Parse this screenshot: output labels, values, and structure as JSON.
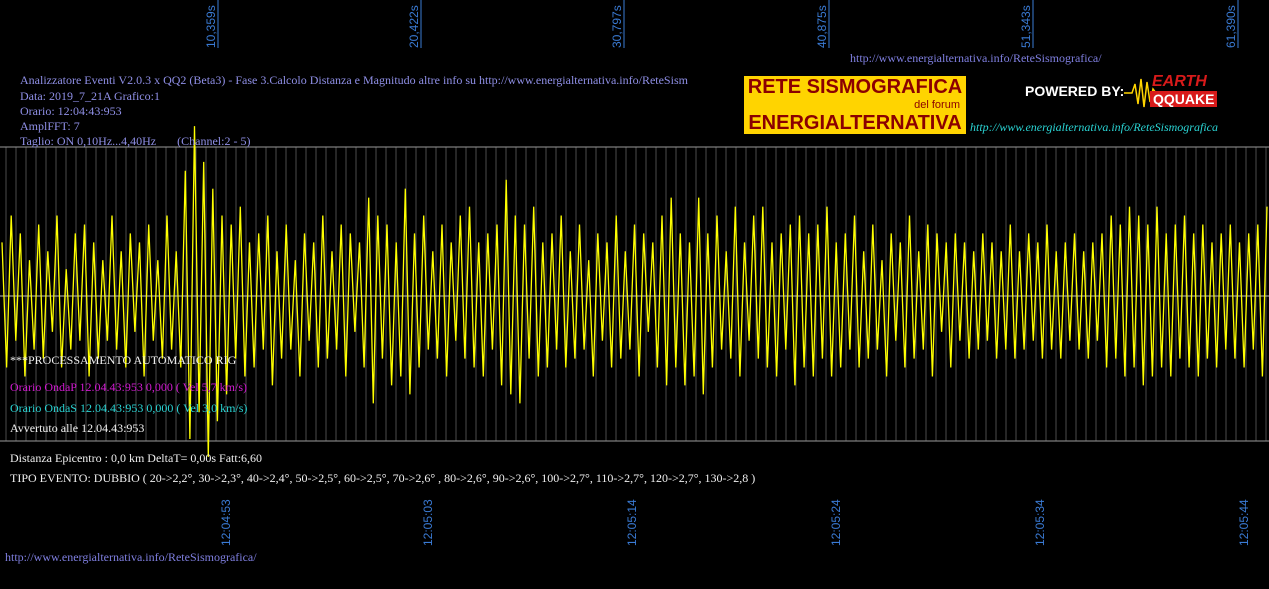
{
  "header": {
    "line1": "Analizzatore Eventi V2.0.3 x QQ2 (Beta3) - Fase 3.Calcolo Distanza e Magnitudo altre info su http://www.energialternativa.info/ReteSism",
    "line2": "Data: 2019_7_21A Grafico:1",
    "line3": "Orario: 12:04:43:953",
    "line4": "AmplFFT: 7",
    "line5": "Taglio: ON 0,10Hz...4,40Hz       (Channel:2 - 5)"
  },
  "url_top": "http://www.energialternativa.info/ReteSismografica/",
  "url_bottom": "http://www.energialternativa.info/ReteSismografica/",
  "banner": {
    "title1": "RETE SISMOGRAFICA",
    "subtitle": "del forum",
    "title2": "ENERGIALTERNATIVA",
    "powered": "POWERED BY:",
    "brand1": "EARTH",
    "brand2": "QQUAKE",
    "url": "http://www.energialternativa.info/ReteSismografica"
  },
  "info": {
    "processing": "***PROCESSAMENTO AUTOMATICO RIG",
    "onda_p": "Orario OndaP 12.04.43:953  0,000 ( Vel 5,7 km/s)",
    "onda_s": "Orario OndaS 12.04.43:953  0,000 ( Vel 3,0 km/s)",
    "avvertuto": "Avvertuto alle 12.04.43:953",
    "distanza": "Distanza Epicentro : 0,0 km DeltaT= 0,00s  Fatt:6,60",
    "tipo_evento": "TIPO EVENTO: DUBBIO ( 20->2,2°, 30->2,3°, 40->2,4°, 50->2,5°, 60->2,5°, 70->2,6° , 80->2,6°, 90->2,6°, 100->2,7°, 110->2,7°, 120->2,7°, 130->2,8 )"
  },
  "colors": {
    "trace": "#ffff00",
    "grid": "#8c8c8c",
    "axis_labels": "#3a7bd5"
  },
  "chart_data": {
    "type": "line",
    "title": "",
    "xlabel": "",
    "ylabel": "",
    "x_top_ticks": [
      "10,359s",
      "20,422s",
      "30,797s",
      "40,875s",
      "51,343s",
      "61,390s"
    ],
    "x_bottom_ticks": [
      "12:04:53",
      "12:05:03",
      "12:05:14",
      "12:05:24",
      "12:05:34",
      "12:05:44"
    ],
    "grid": true,
    "series": [
      {
        "values": [
          0.6,
          -0.8,
          0.9,
          -0.5,
          0.7,
          -0.9,
          0.4,
          -0.6,
          0.8,
          -0.7,
          0.5,
          -0.4,
          0.9,
          -0.8,
          0.3,
          -0.6,
          0.7,
          -0.5,
          0.8,
          -0.9,
          0.6,
          -0.7,
          0.4,
          -0.5,
          0.9,
          -0.6,
          0.5,
          -0.8,
          0.7,
          -0.4,
          0.6,
          -0.9,
          0.8,
          -0.5,
          0.4,
          -0.7,
          0.9,
          -0.6,
          0.5,
          -0.8,
          1.4,
          -1.6,
          1.9,
          -1.3,
          1.5,
          -1.8,
          1.2,
          -1.4,
          0.9,
          -1.1,
          0.8,
          -0.7,
          1.0,
          -0.9,
          0.6,
          -0.8,
          0.7,
          -0.6,
          0.9,
          -1.0,
          0.5,
          -0.7,
          0.8,
          -0.6,
          0.4,
          -0.9,
          0.7,
          -0.5,
          0.6,
          -0.8,
          0.9,
          -0.7,
          0.5,
          -0.6,
          0.8,
          -0.9,
          0.7,
          -0.4,
          0.6,
          -0.8,
          1.1,
          -1.2,
          0.9,
          -0.7,
          0.8,
          -1.0,
          0.6,
          -0.9,
          1.2,
          -1.1,
          0.7,
          -0.8,
          0.9,
          -0.6,
          0.5,
          -0.7,
          0.8,
          -0.9,
          0.6,
          -0.5,
          0.9,
          -0.7,
          1.0,
          -0.8,
          0.6,
          -0.9,
          0.7,
          -0.6,
          0.8,
          -1.0,
          1.3,
          -1.1,
          0.9,
          -1.2,
          0.8,
          -0.7,
          1.0,
          -0.9,
          0.6,
          -0.8,
          0.7,
          -0.6,
          0.9,
          -0.8,
          0.5,
          -0.7,
          0.8,
          -0.6,
          0.4,
          -0.9,
          0.7,
          -0.5,
          0.6,
          -0.8,
          0.9,
          -0.7,
          0.5,
          -0.6,
          0.8,
          -0.9,
          0.7,
          -0.4,
          0.6,
          -0.8,
          0.9,
          -1.0,
          1.1,
          -0.8,
          0.7,
          -1.0,
          0.6,
          -0.9,
          1.1,
          -1.1,
          0.7,
          -0.8,
          0.9,
          -0.6,
          0.5,
          -0.7,
          1.0,
          -0.9,
          0.6,
          -0.5,
          0.9,
          -0.7,
          1.0,
          -0.8,
          0.6,
          -0.9,
          0.7,
          -0.6,
          0.8,
          -1.0,
          0.9,
          -0.8,
          0.7,
          -0.9,
          0.8,
          -0.7,
          1.0,
          -0.9,
          0.6,
          -0.8,
          0.7,
          -0.6,
          0.9,
          -0.8,
          0.5,
          -0.7,
          0.8,
          -0.6,
          0.4,
          -0.9,
          0.7,
          -0.5,
          0.6,
          -0.8,
          0.9,
          -0.7,
          0.5,
          -0.6,
          0.8,
          -0.9,
          0.7,
          -0.4,
          0.6,
          -0.8,
          0.7,
          -0.5,
          0.6,
          -0.7,
          0.5,
          -0.6,
          0.7,
          -0.5,
          0.6,
          -0.7,
          0.5,
          -0.6,
          0.8,
          -0.7,
          0.5,
          -0.6,
          0.7,
          -0.5,
          0.6,
          -0.7,
          0.8,
          -0.6,
          0.5,
          -0.7,
          0.6,
          -0.5,
          0.7,
          -0.6,
          0.5,
          -0.7,
          0.6,
          -0.5,
          0.7,
          -0.8,
          0.9,
          -0.7,
          0.8,
          -0.9,
          1.0,
          -0.8,
          0.9,
          -1.0,
          0.8,
          -0.9,
          1.0,
          -0.8,
          0.7,
          -0.9,
          0.8,
          -0.7,
          0.9,
          -0.8,
          0.7,
          -0.9,
          0.8,
          -0.7,
          0.6,
          -0.8,
          0.7,
          -0.6,
          0.8,
          -0.7,
          0.6,
          -0.8,
          0.7,
          -0.6,
          0.8,
          -0.9,
          1.0
        ]
      }
    ]
  }
}
